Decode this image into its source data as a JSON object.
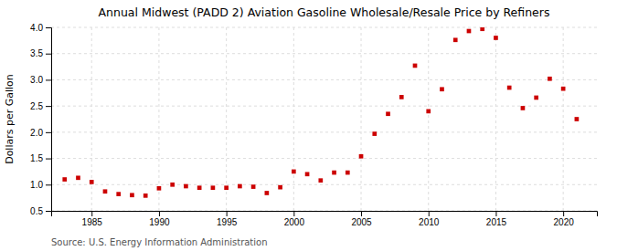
{
  "chart_data": {
    "type": "scatter",
    "title": "Annual Midwest (PADD 2) Aviation Gasoline Wholesale/Resale Price by Refiners",
    "ylabel": "Dollars per Gallon",
    "source": "Source: U.S. Energy Information Administration",
    "x": [
      1983,
      1984,
      1985,
      1986,
      1987,
      1988,
      1989,
      1990,
      1991,
      1992,
      1993,
      1994,
      1995,
      1996,
      1997,
      1998,
      1999,
      2000,
      2001,
      2002,
      2003,
      2004,
      2005,
      2006,
      2007,
      2008,
      2009,
      2010,
      2011,
      2012,
      2013,
      2014,
      2015,
      2016,
      2017,
      2018,
      2019,
      2020,
      2021
    ],
    "values": [
      1.1,
      1.13,
      1.05,
      0.87,
      0.82,
      0.8,
      0.79,
      0.93,
      1.0,
      0.97,
      0.94,
      0.94,
      0.94,
      0.97,
      0.96,
      0.84,
      0.95,
      1.25,
      1.2,
      1.08,
      1.23,
      1.23,
      1.54,
      1.97,
      2.35,
      2.67,
      3.27,
      2.4,
      2.82,
      3.76,
      3.93,
      3.97,
      3.8,
      2.85,
      2.46,
      2.66,
      3.02,
      2.83,
      2.25
    ],
    "color": "#CC0000",
    "marker": "square",
    "xlim": [
      1982,
      2022.5
    ],
    "ylim": [
      0.5,
      4.0
    ],
    "xticks": [
      1985,
      1990,
      1995,
      2000,
      2005,
      2010,
      2015,
      2020
    ],
    "yticks": [
      0.5,
      {
        "value": 1.0,
        "label": "1.0"
      },
      1.5,
      {
        "value": 2.0,
        "label": "2.0"
      },
      2.5,
      {
        "value": 3.0,
        "label": "3.0"
      },
      3.5,
      {
        "value": 4.0,
        "label": "4.0"
      }
    ],
    "grid": true
  }
}
